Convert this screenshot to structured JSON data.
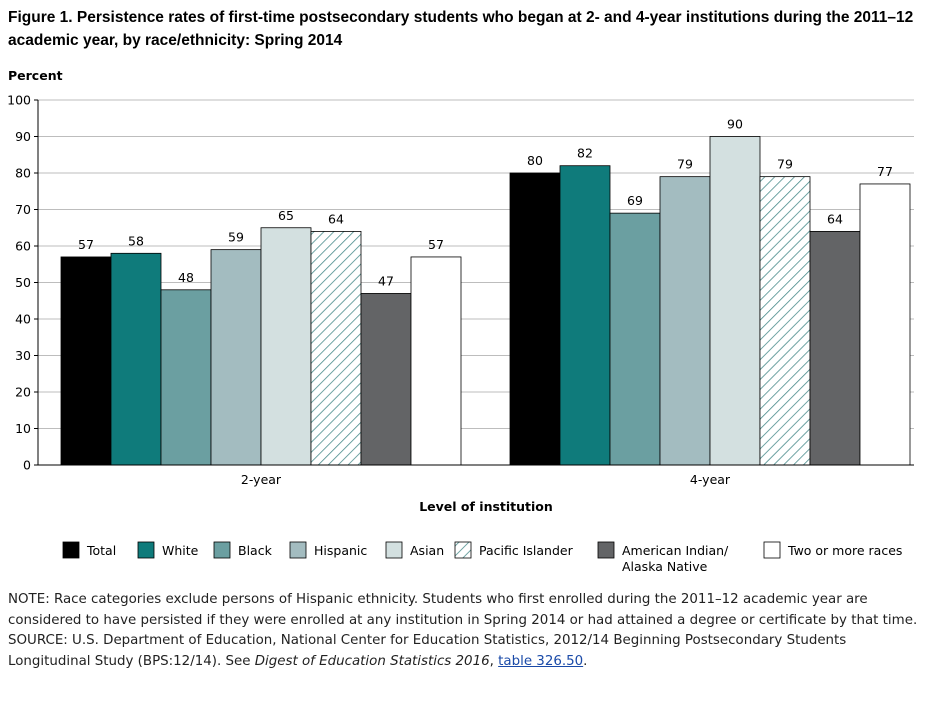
{
  "title": "Figure 1. Persistence rates of first-time postsecondary students who began at 2- and 4-year institutions during the 2011–12 academic year, by race/ethnicity: Spring 2014",
  "chart_data": {
    "type": "bar",
    "ylabel": "Percent",
    "xlabel": "Level of institution",
    "ylim": [
      0,
      100
    ],
    "yticks": [
      0,
      10,
      20,
      30,
      40,
      50,
      60,
      70,
      80,
      90,
      100
    ],
    "grid": true,
    "legend_position": "bottom",
    "categories": [
      "2-year",
      "4-year"
    ],
    "series": [
      {
        "name": "Total",
        "values": [
          57,
          80
        ],
        "color": "#000000",
        "pattern": "solid"
      },
      {
        "name": "White",
        "values": [
          58,
          82
        ],
        "color": "#0f7b7b",
        "pattern": "solid"
      },
      {
        "name": "Black",
        "values": [
          48,
          69
        ],
        "color": "#6b9fa1",
        "pattern": "solid"
      },
      {
        "name": "Hispanic",
        "values": [
          59,
          79
        ],
        "color": "#a3bcc0",
        "pattern": "solid"
      },
      {
        "name": "Asian",
        "values": [
          65,
          90
        ],
        "color": "#d3e0e0",
        "pattern": "solid"
      },
      {
        "name": "Pacific Islander",
        "values": [
          64,
          79
        ],
        "color": "#4a8c8c",
        "pattern": "hatch"
      },
      {
        "name": "American Indian/ Alaska Native",
        "values": [
          47,
          64
        ],
        "color": "#636466",
        "pattern": "solid"
      },
      {
        "name": "Two or more races",
        "values": [
          57,
          77
        ],
        "color": "#ffffff",
        "pattern": "solid"
      }
    ]
  },
  "note": "NOTE: Race categories exclude persons of Hispanic ethnicity. Students who first enrolled during the 2011–12 academic year are considered to have persisted if they were enrolled at any institution in Spring 2014 or had attained a degree or certificate by that time.",
  "source": {
    "prefix": "SOURCE: U.S. Department of Education, National Center for Education Statistics, 2012/14 Beginning Postsecondary Students Longitudinal Study (BPS:12/14). See ",
    "digest": "Digest of Education Statistics 2016",
    "sep": ", ",
    "link_text": "table 326.50",
    "end": "."
  }
}
